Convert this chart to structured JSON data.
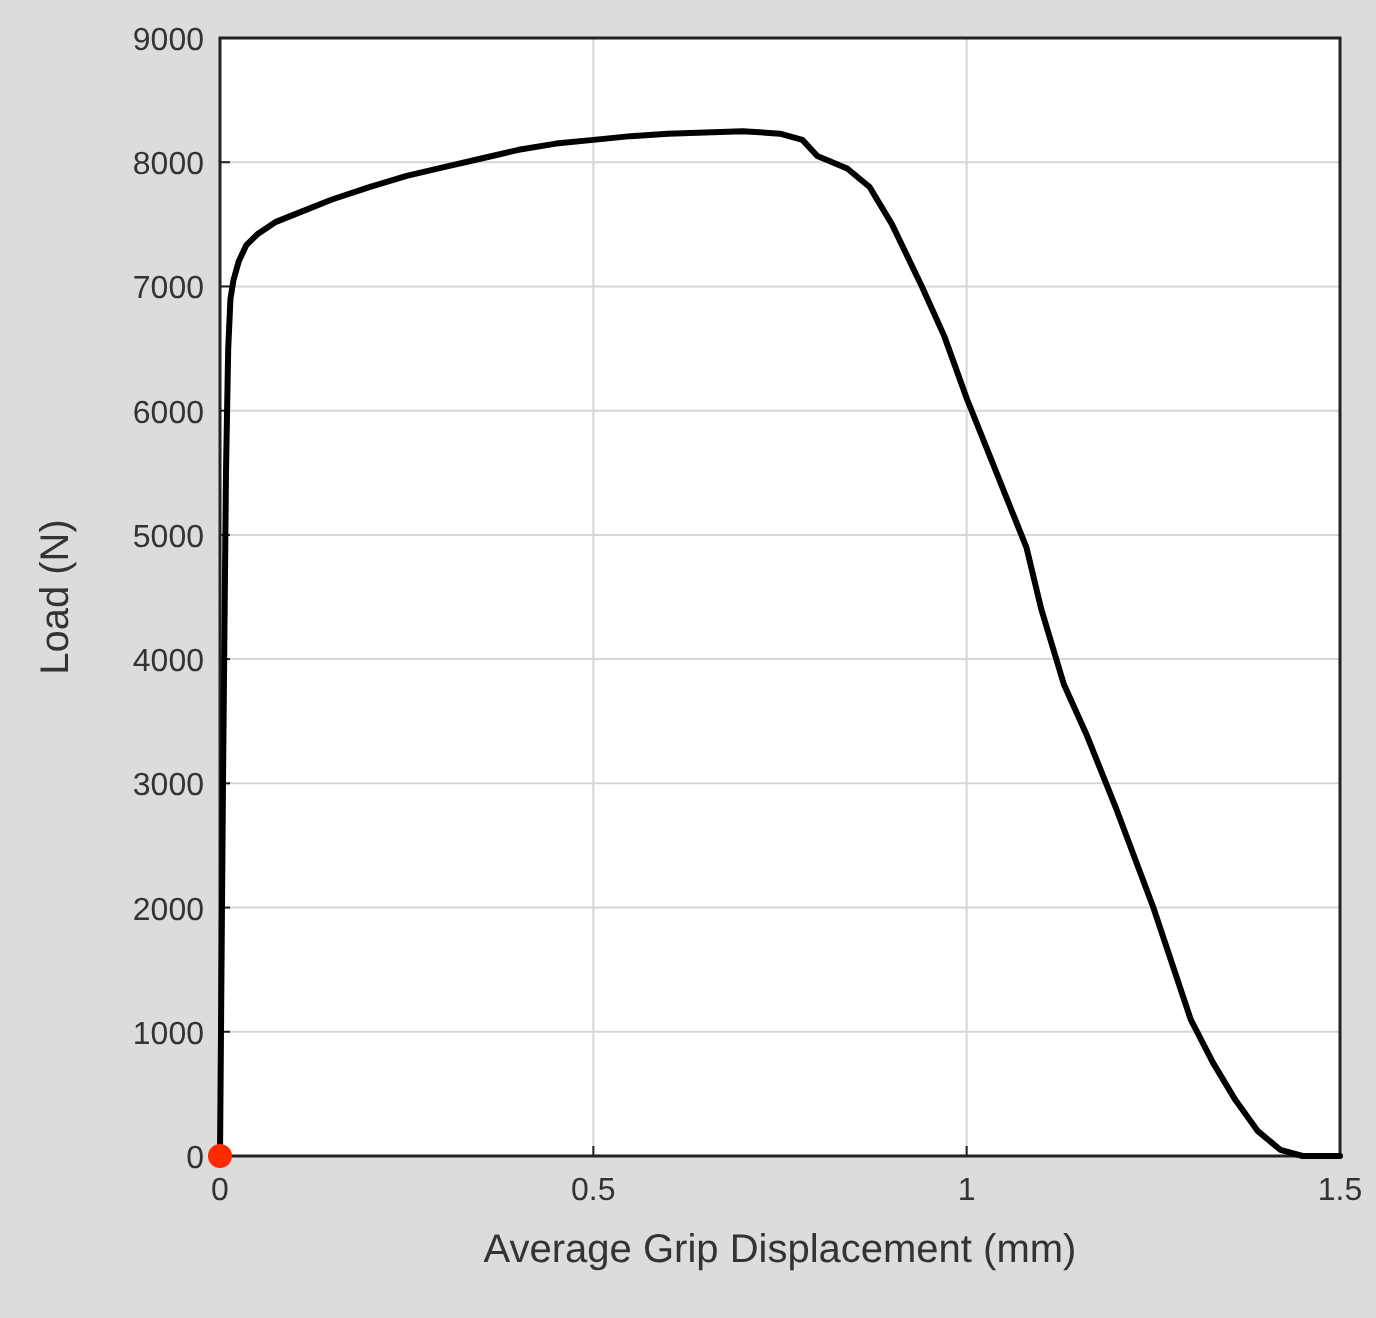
{
  "chart_data": {
    "type": "line",
    "xlabel": "Average Grip Displacement (mm)",
    "ylabel": "Load (N)",
    "xlim": [
      0,
      1.5
    ],
    "xticks": [
      0,
      0.5,
      1,
      1.5
    ],
    "ylim": [
      0,
      9000
    ],
    "yticks": [
      0,
      1000,
      2000,
      3000,
      4000,
      5000,
      6000,
      7000,
      8000,
      9000
    ],
    "grid": true,
    "series": [
      {
        "color": "#000000",
        "x": [
          0,
          0.004,
          0.008,
          0.011,
          0.014,
          0.018,
          0.025,
          0.035,
          0.05,
          0.075,
          0.1,
          0.15,
          0.2,
          0.25,
          0.3,
          0.35,
          0.4,
          0.45,
          0.5,
          0.55,
          0.6,
          0.65,
          0.7,
          0.75,
          0.78,
          0.8,
          0.84,
          0.87,
          0.9,
          0.94,
          0.97,
          1.0,
          1.03,
          1.06,
          1.08,
          1.1,
          1.13,
          1.16,
          1.2,
          1.25,
          1.3,
          1.33,
          1.36,
          1.39,
          1.42,
          1.45,
          1.5
        ],
        "values": [
          0,
          3000,
          5500,
          6500,
          6900,
          7050,
          7200,
          7330,
          7420,
          7520,
          7580,
          7700,
          7800,
          7890,
          7960,
          8030,
          8100,
          8150,
          8180,
          8210,
          8230,
          8240,
          8250,
          8230,
          8180,
          8050,
          7950,
          7800,
          7500,
          7000,
          6600,
          6100,
          5650,
          5200,
          4900,
          4400,
          3800,
          3400,
          2800,
          2000,
          1100,
          750,
          450,
          200,
          50,
          0,
          0
        ]
      },
      {
        "type": "scatter",
        "color": "#ff2a00",
        "marker": "circle",
        "x": [
          0
        ],
        "values": [
          0
        ]
      }
    ]
  }
}
